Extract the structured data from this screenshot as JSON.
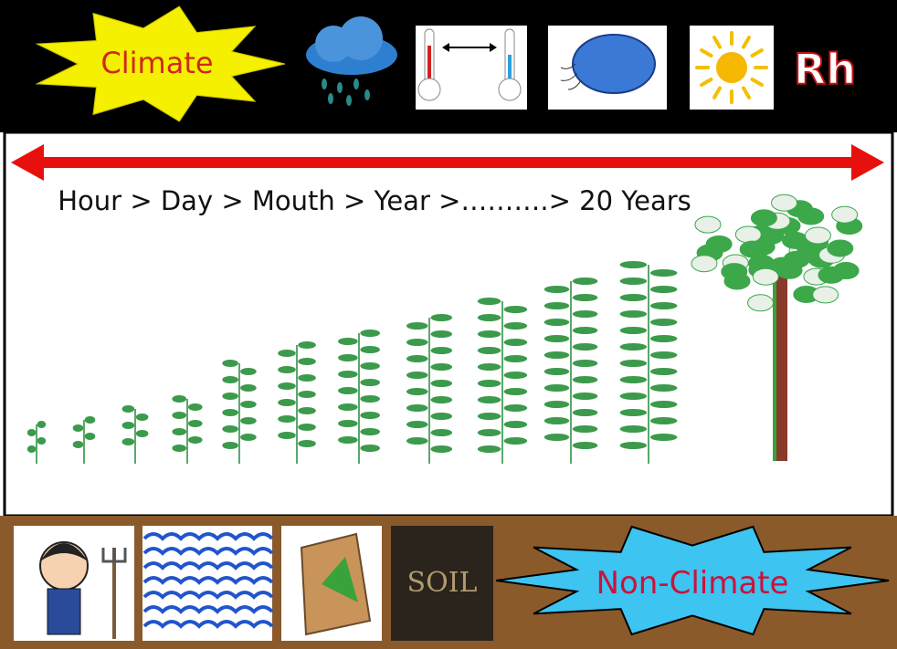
{
  "header": {
    "label": "Climate",
    "rh": "Rh"
  },
  "timeline": {
    "text": "Hour > Day > Mouth > Year >……….> 20 Years"
  },
  "footer": {
    "soil": "SOIL",
    "label": "Non-Climate"
  }
}
